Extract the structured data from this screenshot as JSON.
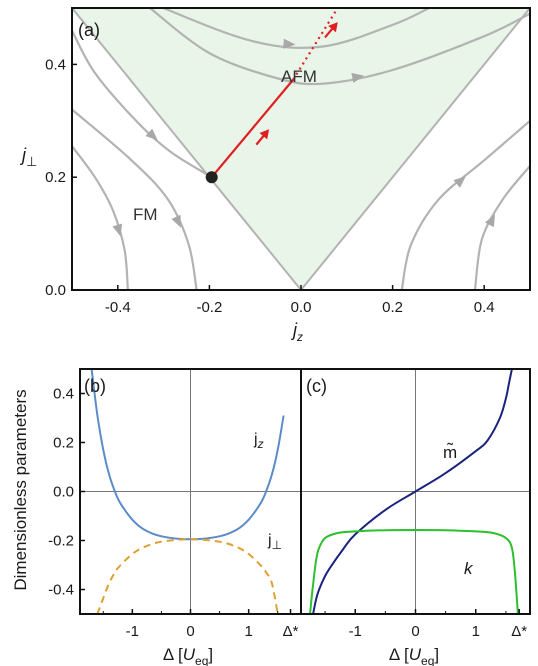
{
  "chart_data": [
    {
      "panel": "(a)",
      "type": "line",
      "xlabel": "j_z",
      "ylabel": "j⊥",
      "xlim": [
        -0.5,
        0.5
      ],
      "ylim": [
        0.0,
        0.5
      ],
      "x_ticks": [
        "-0.4",
        "-0.2",
        "0.0",
        "0.2",
        "0.4"
      ],
      "y_ticks": [
        "0.0",
        "0.2",
        "0.4"
      ],
      "regions": [
        {
          "label": "AFM",
          "shaded": true,
          "color": "#e8f5e8"
        },
        {
          "label": "FM",
          "shaded": false
        }
      ],
      "separatrix": [
        [
          -0.5,
          0.5
        ],
        [
          0.0,
          0.0
        ],
        [
          0.5,
          0.5
        ]
      ],
      "fixed_point": {
        "x": -0.195,
        "y": 0.2
      },
      "critical_trajectory": {
        "solid": [
          [
            -0.195,
            0.2
          ],
          [
            -0.017,
            0.373
          ]
        ],
        "dotted": [
          [
            -0.017,
            0.373
          ],
          [
            0.08,
            0.5
          ]
        ],
        "color": "#e02020"
      },
      "flow_lines": [
        {
          "region": "FM",
          "points": [
            [
              -0.5,
              0.46
            ],
            [
              -0.45,
              0.385
            ],
            [
              -0.36,
              0.3
            ],
            [
              -0.285,
              0.245
            ],
            [
              -0.195,
              0.2
            ]
          ]
        },
        {
          "region": "FM",
          "points": [
            [
              -0.5,
              0.32
            ],
            [
              -0.37,
              0.23
            ],
            [
              -0.29,
              0.16
            ],
            [
              -0.245,
              0.08
            ],
            [
              -0.228,
              0.0
            ]
          ]
        },
        {
          "region": "FM",
          "points": [
            [
              -0.5,
              0.255
            ],
            [
              -0.45,
              0.2
            ],
            [
              -0.41,
              0.14
            ],
            [
              -0.385,
              0.07
            ],
            [
              -0.378,
              0.0
            ]
          ]
        },
        {
          "region": "AFM",
          "points": [
            [
              -0.5,
              0.575
            ],
            [
              -0.3,
              0.5
            ],
            [
              -0.1,
              0.44
            ],
            [
              0.05,
              0.432
            ],
            [
              0.2,
              0.47
            ],
            [
              0.28,
              0.5
            ]
          ]
        },
        {
          "region": "AFM",
          "points": [
            [
              -0.33,
              0.5
            ],
            [
              -0.2,
              0.42
            ],
            [
              -0.05,
              0.375
            ],
            [
              0.05,
              0.366
            ],
            [
              0.2,
              0.39
            ],
            [
              0.4,
              0.45
            ],
            [
              0.5,
              0.49
            ]
          ]
        },
        {
          "region": "AFM",
          "points": [
            [
              0.22,
              0.0
            ],
            [
              0.24,
              0.08
            ],
            [
              0.3,
              0.16
            ],
            [
              0.4,
              0.23
            ],
            [
              0.5,
              0.3
            ]
          ]
        },
        {
          "region": "AFM",
          "points": [
            [
              0.38,
              0.0
            ],
            [
              0.395,
              0.09
            ],
            [
              0.44,
              0.16
            ],
            [
              0.5,
              0.22
            ]
          ]
        }
      ],
      "flow_color": "#b3b3b3"
    },
    {
      "panel": "(b)",
      "type": "line",
      "xlabel": "Δ [U_eq]",
      "ylabel": "Dimensionless parameters",
      "xlim": [
        -1.9,
        1.9
      ],
      "ylim": [
        -0.5,
        0.5
      ],
      "x_ticks": [
        "-1",
        "0",
        "1",
        "Δ*"
      ],
      "y_ticks": [
        "-0.4",
        "-0.2",
        "0.0",
        "0.2",
        "0.4"
      ],
      "series": [
        {
          "name": "jz",
          "color": "#5b8cc8",
          "dash": "solid",
          "x": [
            -1.7,
            -1.6,
            -1.5,
            -1.4,
            -1.3,
            -1.2,
            -1.0,
            -0.8,
            -0.5,
            0.0,
            0.5,
            0.8,
            1.0,
            1.2,
            1.3,
            1.4,
            1.5,
            1.6
          ],
          "y": [
            0.5,
            0.31,
            0.17,
            0.07,
            0.0,
            -0.05,
            -0.115,
            -0.155,
            -0.183,
            -0.195,
            -0.183,
            -0.155,
            -0.115,
            -0.05,
            0.0,
            0.07,
            0.17,
            0.31
          ]
        },
        {
          "name": "j⊥",
          "color": "#e0a030",
          "dash": "dashed",
          "x": [
            -1.6,
            -1.5,
            -1.4,
            -1.3,
            -1.2,
            -1.0,
            -0.8,
            -0.5,
            0.0,
            0.5,
            0.8,
            1.0,
            1.2,
            1.3,
            1.4,
            1.5
          ],
          "y": [
            -0.5,
            -0.435,
            -0.375,
            -0.33,
            -0.3,
            -0.255,
            -0.227,
            -0.205,
            -0.195,
            -0.205,
            -0.227,
            -0.255,
            -0.3,
            -0.33,
            -0.375,
            -0.5
          ]
        }
      ]
    },
    {
      "panel": "(c)",
      "type": "line",
      "xlabel": "Δ [U_eq]",
      "xlim": [
        -1.9,
        1.9
      ],
      "ylim": [
        -0.5,
        0.5
      ],
      "x_ticks": [
        "-1",
        "0",
        "1",
        "Δ*"
      ],
      "series": [
        {
          "name": "m̃",
          "color": "#1a237e",
          "dash": "solid",
          "x": [
            -1.7,
            -1.65,
            -1.6,
            -1.5,
            -1.4,
            -1.2,
            -1.0,
            -0.5,
            0.0,
            0.5,
            1.0,
            1.2,
            1.4,
            1.5,
            1.55,
            1.6
          ],
          "y": [
            -0.5,
            -0.44,
            -0.4,
            -0.345,
            -0.305,
            -0.235,
            -0.175,
            -0.075,
            0.0,
            0.075,
            0.165,
            0.21,
            0.3,
            0.38,
            0.44,
            0.5
          ]
        },
        {
          "name": "k",
          "color": "#2cc02c",
          "dash": "solid",
          "x": [
            -1.75,
            -1.7,
            -1.65,
            -1.6,
            -1.5,
            -1.3,
            -1.0,
            -0.5,
            0.0,
            0.5,
            1.0,
            1.3,
            1.5,
            1.6,
            1.65,
            1.7
          ],
          "y": [
            -0.5,
            -0.38,
            -0.28,
            -0.23,
            -0.19,
            -0.17,
            -0.163,
            -0.158,
            -0.157,
            -0.158,
            -0.163,
            -0.17,
            -0.19,
            -0.23,
            -0.33,
            -0.5
          ]
        }
      ]
    }
  ]
}
